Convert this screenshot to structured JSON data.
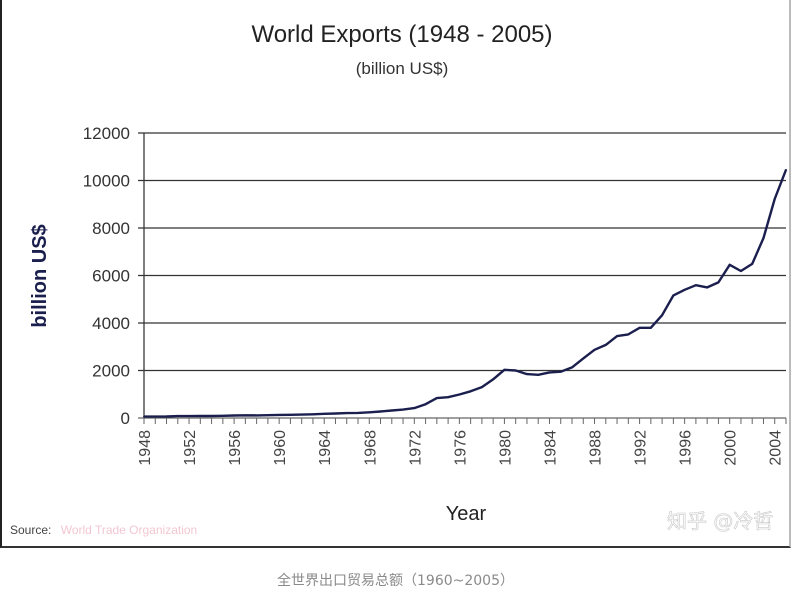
{
  "chart_data": {
    "type": "line",
    "title": "World Exports (1948 - 2005)",
    "subtitle": "(billion US$)",
    "xlabel": "Year",
    "ylabel": "billion US$",
    "xlim": [
      1948,
      2005
    ],
    "ylim": [
      0,
      12000
    ],
    "yticks": [
      0,
      2000,
      4000,
      6000,
      8000,
      10000,
      12000
    ],
    "ytick_labels": [
      "0",
      "2000",
      "4000",
      "6000",
      "8000",
      "10000",
      "12000"
    ],
    "xticks": [
      1948,
      1952,
      1956,
      1960,
      1964,
      1968,
      1972,
      1976,
      1980,
      1984,
      1988,
      1992,
      1996,
      2000,
      2004
    ],
    "xtick_labels": [
      "1948",
      "1952",
      "1956",
      "1960",
      "1964",
      "1968",
      "1972",
      "1976",
      "1980",
      "1984",
      "1988",
      "1992",
      "1996",
      "2000",
      "2004"
    ],
    "grid": "horizontal",
    "color": "#1b1f4e",
    "series": [
      {
        "name": "World Exports",
        "x": [
          1948,
          1949,
          1950,
          1951,
          1952,
          1953,
          1954,
          1955,
          1956,
          1957,
          1958,
          1959,
          1960,
          1961,
          1962,
          1963,
          1964,
          1965,
          1966,
          1967,
          1968,
          1969,
          1970,
          1971,
          1972,
          1973,
          1974,
          1975,
          1976,
          1977,
          1978,
          1979,
          1980,
          1981,
          1982,
          1983,
          1984,
          1985,
          1986,
          1987,
          1988,
          1989,
          1990,
          1991,
          1992,
          1993,
          1994,
          1995,
          1996,
          1997,
          1998,
          1999,
          2000,
          2001,
          2002,
          2003,
          2004,
          2005
        ],
        "values": [
          59,
          58,
          62,
          82,
          81,
          84,
          86,
          94,
          104,
          112,
          108,
          116,
          130,
          134,
          142,
          155,
          175,
          190,
          205,
          215,
          240,
          275,
          315,
          355,
          418,
          580,
          840,
          875,
          990,
          1125,
          1300,
          1630,
          2030,
          2000,
          1850,
          1820,
          1920,
          1950,
          2130,
          2510,
          2870,
          3080,
          3450,
          3520,
          3800,
          3800,
          4330,
          5160,
          5400,
          5590,
          5500,
          5710,
          6450,
          6190,
          6490,
          7580,
          9220,
          10450
        ]
      }
    ],
    "source": {
      "label": "Source:",
      "org": "World Trade Organization"
    }
  },
  "watermark": "知乎 @冷哲",
  "caption": "全世界出口贸易总额（1960~2005）"
}
